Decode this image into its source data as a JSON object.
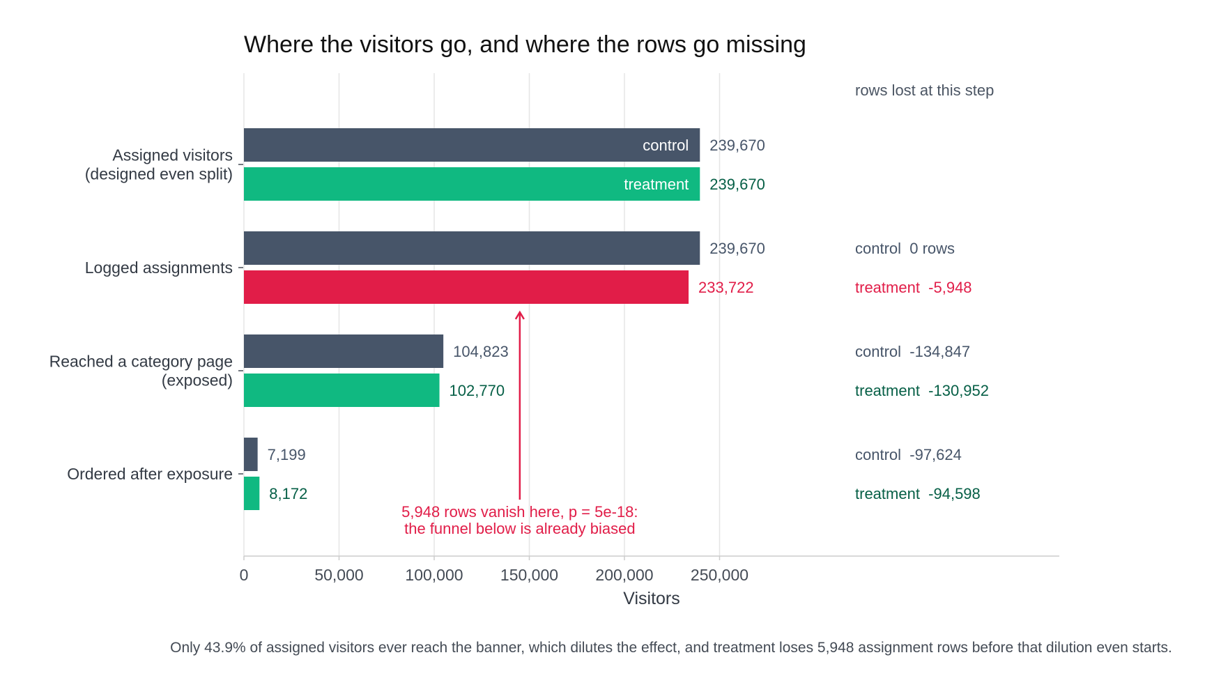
{
  "chart_data": {
    "type": "bar",
    "orientation": "horizontal",
    "title": "Where the visitors go, and where the rows go missing",
    "xlabel": "Visitors",
    "ylabel": "",
    "xlim": [
      0,
      430000
    ],
    "xticks": [
      0,
      50000,
      100000,
      150000,
      200000,
      250000
    ],
    "xtick_labels": [
      "0",
      "50,000",
      "100,000",
      "150,000",
      "200,000",
      "250,000"
    ],
    "grid": "vertical",
    "categories": [
      [
        "Assigned visitors",
        "(designed even split)"
      ],
      [
        "Logged assignments"
      ],
      [
        "Reached a category page",
        "(exposed)"
      ],
      [
        "Ordered after exposure"
      ]
    ],
    "series": [
      {
        "name": "control",
        "color": "#475569",
        "label_color": "#475569",
        "values": [
          239670,
          239670,
          104823,
          7199
        ],
        "value_labels": [
          "239,670",
          "239,670",
          "104,823",
          "7,199"
        ]
      },
      {
        "name": "treatment",
        "color": "#10b981",
        "label_color": "#065f46",
        "highlight_color": "#e11d48",
        "highlight_index": 1,
        "values": [
          239670,
          233722,
          102770,
          8172
        ],
        "value_labels": [
          "239,670",
          "233,722",
          "102,770",
          "8,172"
        ]
      }
    ],
    "rows_lost": {
      "header": "rows lost at this step",
      "control": [
        "",
        "control  0 rows",
        "control  -134,847",
        "control  -97,624"
      ],
      "treatment": [
        "",
        "treatment  -5,948",
        "treatment  -130,952",
        "treatment  -94,598"
      ]
    },
    "annotation": {
      "lines": [
        "5,948 rows vanish here, p = 5e-18:",
        "the funnel below is already biased"
      ],
      "x_value": 145000,
      "points_to_category": 1,
      "color": "#e11d48"
    },
    "footnote": "Only 43.9% of assigned visitors ever reach the banner, which dilutes the effect, and treatment loses 5,948 assignment rows before that dilution even starts."
  },
  "colors": {
    "grid": "#e5e5e5",
    "axis": "#cccccc",
    "text": "#333a44",
    "highlight": "#e11d48"
  }
}
